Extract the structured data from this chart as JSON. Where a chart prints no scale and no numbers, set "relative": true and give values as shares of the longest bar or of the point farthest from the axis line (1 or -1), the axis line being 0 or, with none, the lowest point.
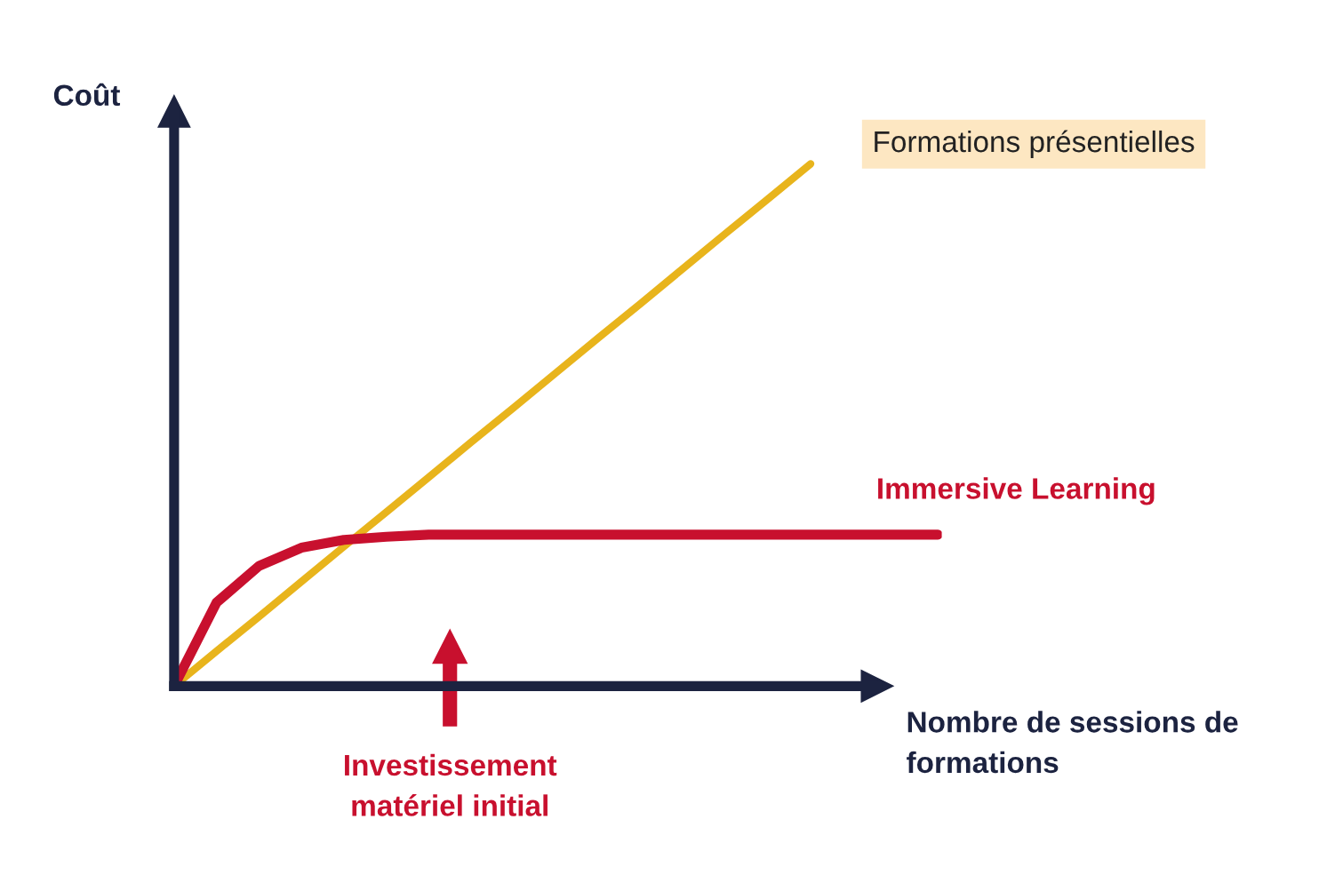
{
  "chart_data": {
    "type": "line",
    "relative": true,
    "xlabel": "Nombre de sessions de formations",
    "ylabel": "Coût",
    "categories": [
      null,
      null,
      null,
      null,
      null,
      null,
      null,
      null,
      null,
      null,
      null,
      null,
      null,
      null,
      null,
      null,
      null,
      null,
      null
    ],
    "series": [
      {
        "name": "Formations présentielles",
        "color": "#e8b41c",
        "values": [
          0,
          0.067,
          0.133,
          0.2,
          0.267,
          0.333,
          0.4,
          0.467,
          0.533,
          0.6,
          0.667,
          0.733,
          0.8,
          0.867,
          0.933,
          1,
          null,
          null,
          null
        ]
      },
      {
        "name": "Immersive Learning",
        "color": "#c8102e",
        "values": [
          0,
          0.16,
          0.23,
          0.265,
          0.28,
          0.286,
          0.29,
          0.29,
          0.29,
          0.29,
          0.29,
          0.29,
          0.29,
          0.29,
          0.29,
          0.29,
          0.29,
          0.29,
          0.29
        ]
      }
    ],
    "annotations": [
      "Investissement matériel initial"
    ],
    "legend": false,
    "marker": "none",
    "line_style": "solid"
  }
}
